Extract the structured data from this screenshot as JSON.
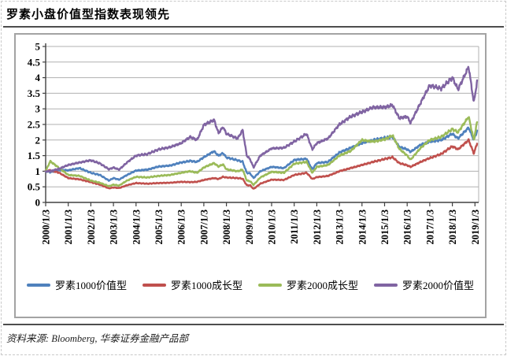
{
  "page": {
    "title": "罗素小盘价值型指数表现领先",
    "source_note": "资料来源: Bloomberg, 华泰证券金融产品部"
  },
  "colors": {
    "axis": "#404040",
    "grid": "#b0b0b0",
    "frame": "#a3a3a3",
    "blue": "#4F81BD",
    "red": "#C0504D",
    "green": "#9BBB59",
    "purple": "#8064A2"
  },
  "chart_data": {
    "type": "line",
    "title": "罗素小盘价值型指数表现领先",
    "xlabel": "",
    "ylabel": "",
    "ylim": [
      0,
      5
    ],
    "grid": true,
    "legend_position": "bottom",
    "y_tick_labels": [
      "0",
      "0.5",
      "1",
      "1.5",
      "2",
      "2.5",
      "3",
      "3.5",
      "4",
      "4.5",
      "5"
    ],
    "x_tick_labels": [
      "2000/1/3",
      "2001/1/3",
      "2002/1/3",
      "2003/1/3",
      "2004/1/3",
      "2005/1/3",
      "2006/1/3",
      "2007/1/3",
      "2008/1/3",
      "2009/1/3",
      "2010/1/3",
      "2011/1/3",
      "2012/1/3",
      "2013/1/3",
      "2014/1/3",
      "2015/1/3",
      "2016/1/3",
      "2017/1/3",
      "2018/1/3",
      "2019/1/3"
    ],
    "x_start_year": 2000,
    "x_end_year": 2019.15,
    "x": [
      2000.0,
      2000.2,
      2000.6,
      2001.0,
      2001.5,
      2002.0,
      2002.4,
      2002.8,
      2003.0,
      2003.25,
      2003.6,
      2004.0,
      2004.5,
      2005.0,
      2005.5,
      2006.0,
      2006.4,
      2006.7,
      2007.0,
      2007.45,
      2007.65,
      2007.85,
      2008.0,
      2008.5,
      2008.72,
      2008.9,
      2009.05,
      2009.2,
      2009.5,
      2010.0,
      2010.55,
      2011.0,
      2011.55,
      2011.8,
      2012.0,
      2012.5,
      2013.0,
      2013.5,
      2014.0,
      2014.5,
      2015.0,
      2015.35,
      2015.65,
      2016.0,
      2016.15,
      2016.6,
      2017.0,
      2017.5,
      2018.0,
      2018.25,
      2018.72,
      2018.95,
      2019.1
    ],
    "series": [
      {
        "id": "russell-1000-value",
        "name": "罗素1000价值型",
        "color": "#4F81BD",
        "values": [
          1.0,
          0.97,
          1.04,
          1.03,
          1.1,
          0.95,
          0.88,
          0.7,
          0.78,
          0.73,
          0.88,
          1.02,
          1.05,
          1.15,
          1.18,
          1.28,
          1.33,
          1.3,
          1.45,
          1.64,
          1.5,
          1.58,
          1.44,
          1.35,
          1.3,
          0.95,
          0.93,
          0.78,
          1.0,
          1.14,
          1.1,
          1.36,
          1.4,
          1.06,
          1.26,
          1.3,
          1.6,
          1.75,
          1.9,
          2.0,
          2.07,
          2.1,
          1.78,
          1.7,
          1.62,
          1.85,
          1.95,
          2.0,
          2.2,
          2.05,
          2.4,
          2.0,
          2.3
        ]
      },
      {
        "id": "russell-1000-growth",
        "name": "罗素1000成长型",
        "color": "#C0504D",
        "values": [
          1.0,
          1.03,
          0.95,
          0.78,
          0.74,
          0.65,
          0.57,
          0.45,
          0.48,
          0.46,
          0.55,
          0.62,
          0.6,
          0.62,
          0.63,
          0.66,
          0.65,
          0.66,
          0.72,
          0.78,
          0.75,
          0.82,
          0.8,
          0.78,
          0.76,
          0.55,
          0.55,
          0.43,
          0.6,
          0.73,
          0.72,
          0.88,
          0.95,
          0.75,
          0.81,
          0.85,
          1.0,
          1.1,
          1.2,
          1.3,
          1.39,
          1.45,
          1.26,
          1.19,
          1.14,
          1.3,
          1.42,
          1.55,
          1.8,
          1.7,
          2.0,
          1.57,
          1.9
        ]
      },
      {
        "id": "russell-2000-growth",
        "name": "罗素2000成长型",
        "color": "#9BBB59",
        "values": [
          1.0,
          1.32,
          1.1,
          0.88,
          0.85,
          0.7,
          0.63,
          0.52,
          0.57,
          0.54,
          0.7,
          0.82,
          0.8,
          0.85,
          0.88,
          0.95,
          1.0,
          0.95,
          1.12,
          1.26,
          1.15,
          1.22,
          1.06,
          1.0,
          1.05,
          0.7,
          0.68,
          0.56,
          0.8,
          0.98,
          0.95,
          1.24,
          1.3,
          0.95,
          1.14,
          1.2,
          1.5,
          1.65,
          2.0,
          1.95,
          2.02,
          2.15,
          1.72,
          1.5,
          1.37,
          1.75,
          2.0,
          2.1,
          2.35,
          2.25,
          2.75,
          2.0,
          2.6
        ]
      },
      {
        "id": "russell-2000-value",
        "name": "罗素2000价值型",
        "color": "#8064A2",
        "values": [
          1.0,
          1.0,
          1.08,
          1.2,
          1.28,
          1.35,
          1.25,
          1.06,
          1.12,
          1.05,
          1.28,
          1.5,
          1.55,
          1.7,
          1.77,
          1.9,
          2.1,
          2.0,
          2.48,
          2.65,
          2.22,
          2.42,
          2.2,
          2.05,
          2.32,
          1.5,
          1.38,
          1.12,
          1.5,
          1.73,
          1.75,
          1.95,
          2.2,
          1.7,
          1.9,
          2.05,
          2.5,
          2.75,
          2.9,
          3.05,
          3.05,
          3.12,
          2.7,
          2.75,
          2.55,
          3.2,
          3.75,
          3.65,
          4.0,
          3.62,
          4.35,
          3.2,
          3.9
        ]
      }
    ]
  }
}
